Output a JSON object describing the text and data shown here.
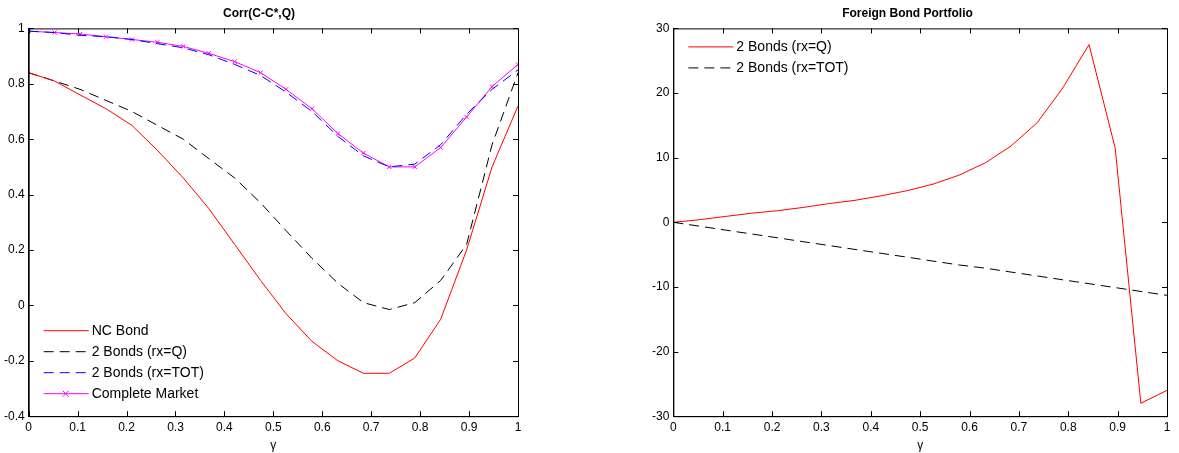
{
  "chart_data": [
    {
      "type": "line",
      "title": "Corr(C-C*,Q)",
      "xlabel": "γ",
      "legend": "bottom left",
      "x": [
        0,
        0.053,
        0.105,
        0.158,
        0.211,
        0.263,
        0.316,
        0.368,
        0.421,
        0.474,
        0.526,
        0.579,
        0.632,
        0.684,
        0.737,
        0.789,
        0.842,
        0.895,
        0.947,
        1
      ],
      "xlim": [
        0,
        1
      ],
      "xticks": [
        0,
        0.1,
        0.2,
        0.3,
        0.4,
        0.5,
        0.6,
        0.7,
        0.8,
        0.9,
        1
      ],
      "ylim": [
        -0.4,
        1
      ],
      "yticks": [
        -0.4,
        -0.2,
        0,
        0.2,
        0.4,
        0.6,
        0.8,
        1
      ],
      "series": [
        {
          "name": "NC Bond",
          "color": "#ff0000",
          "line_style": "solid",
          "marker": "none",
          "values": [
            0.84,
            0.81,
            0.76,
            0.71,
            0.65,
            0.56,
            0.46,
            0.35,
            0.22,
            0.09,
            -0.03,
            -0.13,
            -0.2,
            -0.245,
            -0.245,
            -0.19,
            -0.05,
            0.2,
            0.5,
            0.72
          ]
        },
        {
          "name": "2 Bonds (rx=Q)",
          "color": "#000000",
          "line_style": "dashed",
          "marker": "none",
          "values": [
            0.84,
            0.81,
            0.78,
            0.74,
            0.7,
            0.65,
            0.6,
            0.53,
            0.46,
            0.37,
            0.27,
            0.17,
            0.08,
            0.01,
            -0.015,
            0.01,
            0.09,
            0.22,
            0.58,
            0.84
          ]
        },
        {
          "name": "2 Bonds (rx=TOT)",
          "color": "#0000ff",
          "line_style": "dashed",
          "marker": "none",
          "values": [
            0.99,
            0.985,
            0.975,
            0.97,
            0.96,
            0.945,
            0.93,
            0.905,
            0.87,
            0.83,
            0.77,
            0.7,
            0.61,
            0.54,
            0.5,
            0.51,
            0.58,
            0.69,
            0.78,
            0.85
          ]
        },
        {
          "name": "Complete Market",
          "color": "#ff00ff",
          "line_style": "solid",
          "marker": "cross",
          "values": [
            0.99,
            0.985,
            0.98,
            0.97,
            0.96,
            0.95,
            0.935,
            0.91,
            0.88,
            0.84,
            0.78,
            0.71,
            0.62,
            0.55,
            0.5,
            0.5,
            0.57,
            0.68,
            0.79,
            0.87
          ]
        }
      ]
    },
    {
      "type": "line",
      "title": "Foreign Bond Portfolio",
      "xlabel": "γ",
      "legend": "top left",
      "x": [
        0,
        0.053,
        0.105,
        0.158,
        0.211,
        0.263,
        0.316,
        0.368,
        0.421,
        0.474,
        0.526,
        0.579,
        0.632,
        0.684,
        0.737,
        0.789,
        0.842,
        0.895,
        0.947,
        1
      ],
      "xlim": [
        0,
        1
      ],
      "xticks": [
        0,
        0.1,
        0.2,
        0.3,
        0.4,
        0.5,
        0.6,
        0.7,
        0.8,
        0.9,
        1
      ],
      "ylim": [
        -30,
        30
      ],
      "yticks": [
        -30,
        -20,
        -10,
        0,
        10,
        20,
        30
      ],
      "series": [
        {
          "name": "2 Bonds (rx=Q)",
          "color": "#ff0000",
          "line_style": "solid",
          "marker": "none",
          "values": [
            0,
            0.4,
            0.9,
            1.4,
            1.8,
            2.3,
            2.9,
            3.4,
            4.1,
            4.9,
            5.9,
            7.3,
            9.2,
            11.8,
            15.4,
            20.8,
            27.5,
            11.5,
            -28,
            -26
          ]
        },
        {
          "name": "2 Bonds (rx=TOT)",
          "color": "#000000",
          "line_style": "dashed",
          "marker": "none",
          "values": [
            0,
            -0.6,
            -1.2,
            -1.8,
            -2.4,
            -3,
            -3.6,
            -4.2,
            -4.8,
            -5.4,
            -6,
            -6.6,
            -7.1,
            -7.7,
            -8.3,
            -8.9,
            -9.5,
            -10.1,
            -10.7,
            -11.3
          ]
        }
      ]
    }
  ]
}
